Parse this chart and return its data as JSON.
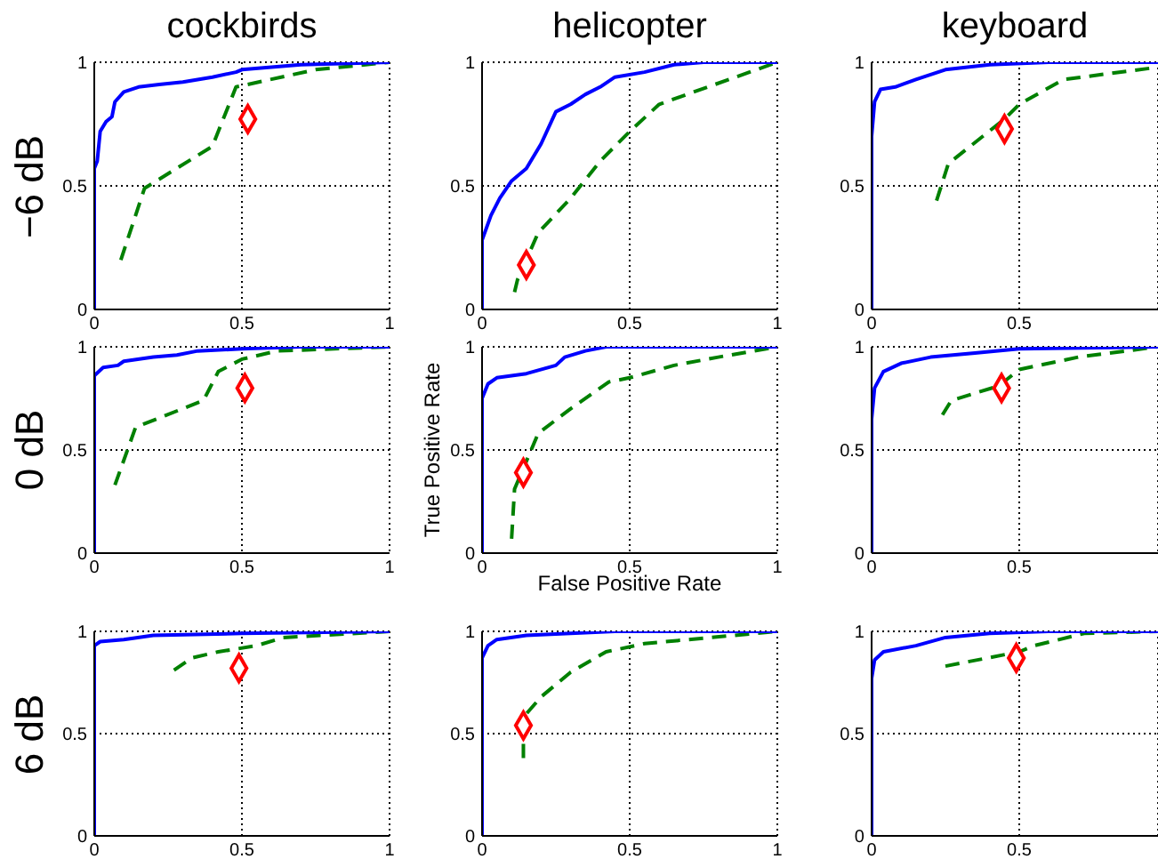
{
  "chart_data": [
    {
      "type": "line",
      "title": "cockbirds",
      "ylabel": "−6 dB",
      "xlim": [
        0,
        1
      ],
      "ylim": [
        0,
        1
      ],
      "xticks": [
        0,
        0.5,
        1
      ],
      "yticks": [
        0,
        0.5,
        1
      ],
      "grid": true,
      "series": [
        {
          "color": "#0000ff",
          "line_style": "solid",
          "x": [
            0,
            0,
            0.01,
            0.02,
            0.04,
            0.06,
            0.07,
            0.1,
            0.15,
            0.22,
            0.3,
            0.4,
            0.48,
            0.5,
            0.7,
            1
          ],
          "values": [
            0,
            0.57,
            0.6,
            0.72,
            0.76,
            0.78,
            0.84,
            0.88,
            0.9,
            0.91,
            0.92,
            0.94,
            0.96,
            0.97,
            0.99,
            1
          ]
        },
        {
          "color": "#008000",
          "line_style": "dashed",
          "x": [
            0.09,
            0.17,
            0.4,
            0.48,
            0.75,
            1
          ],
          "values": [
            0.2,
            0.49,
            0.66,
            0.9,
            0.97,
            1
          ]
        },
        {
          "type": "scatter",
          "color": "#ff0000",
          "marker": "diamond",
          "x": [
            0.52
          ],
          "values": [
            0.77
          ]
        }
      ]
    },
    {
      "type": "line",
      "title": "helicopter",
      "xlim": [
        0,
        1
      ],
      "ylim": [
        0,
        1
      ],
      "xticks": [
        0,
        0.5,
        1
      ],
      "yticks": [
        0,
        0.5,
        1
      ],
      "grid": true,
      "series": [
        {
          "color": "#0000ff",
          "line_style": "solid",
          "x": [
            0,
            0,
            0.03,
            0.06,
            0.1,
            0.15,
            0.2,
            0.25,
            0.3,
            0.35,
            0.4,
            0.45,
            0.55,
            0.65,
            0.75,
            1
          ],
          "values": [
            0,
            0.28,
            0.38,
            0.45,
            0.52,
            0.57,
            0.67,
            0.8,
            0.83,
            0.87,
            0.9,
            0.94,
            0.96,
            0.99,
            1,
            1
          ]
        },
        {
          "color": "#008000",
          "line_style": "dashed",
          "x": [
            0.11,
            0.12,
            0.19,
            0.3,
            0.4,
            0.5,
            0.6,
            1
          ],
          "values": [
            0.07,
            0.12,
            0.31,
            0.45,
            0.6,
            0.72,
            0.83,
            1
          ]
        },
        {
          "type": "scatter",
          "color": "#ff0000",
          "marker": "diamond",
          "x": [
            0.15
          ],
          "values": [
            0.18
          ]
        }
      ]
    },
    {
      "type": "line",
      "title": "keyboard",
      "xlim": [
        0,
        0.97
      ],
      "ylim": [
        0,
        1
      ],
      "xticks": [
        0,
        0.5
      ],
      "yticks": [
        0,
        0.5,
        1
      ],
      "grid": true,
      "series": [
        {
          "color": "#0000ff",
          "line_style": "solid",
          "x": [
            0,
            0,
            0.01,
            0.03,
            0.08,
            0.15,
            0.25,
            0.4,
            0.6,
            0.97
          ],
          "values": [
            0,
            0.7,
            0.84,
            0.89,
            0.9,
            0.93,
            0.97,
            0.99,
            1,
            1
          ]
        },
        {
          "color": "#008000",
          "line_style": "dashed",
          "x": [
            0.22,
            0.26,
            0.45,
            0.5,
            0.65,
            0.97
          ],
          "values": [
            0.44,
            0.59,
            0.77,
            0.83,
            0.93,
            0.98
          ]
        },
        {
          "type": "scatter",
          "color": "#ff0000",
          "marker": "diamond",
          "x": [
            0.45
          ],
          "values": [
            0.73
          ]
        }
      ]
    },
    {
      "type": "line",
      "ylabel": "0 dB",
      "xlim": [
        0,
        1
      ],
      "ylim": [
        0,
        1
      ],
      "xticks": [
        0,
        0.5,
        1
      ],
      "yticks": [
        0,
        0.5,
        1
      ],
      "grid": true,
      "series": [
        {
          "color": "#0000ff",
          "line_style": "solid",
          "x": [
            0,
            0,
            0.03,
            0.08,
            0.1,
            0.2,
            0.28,
            0.35,
            0.5,
            0.7,
            1
          ],
          "values": [
            0,
            0.86,
            0.9,
            0.91,
            0.93,
            0.95,
            0.96,
            0.98,
            0.99,
            1,
            1
          ]
        },
        {
          "color": "#008000",
          "line_style": "dashed",
          "x": [
            0.07,
            0.14,
            0.37,
            0.42,
            0.5,
            0.62,
            1
          ],
          "values": [
            0.33,
            0.61,
            0.74,
            0.88,
            0.94,
            0.98,
            1
          ]
        },
        {
          "type": "scatter",
          "color": "#ff0000",
          "marker": "diamond",
          "x": [
            0.51
          ],
          "values": [
            0.8
          ]
        }
      ]
    },
    {
      "type": "line",
      "xlabel": "False Positive Rate",
      "ylabel": "True Positive Rate",
      "xlim": [
        0,
        1
      ],
      "ylim": [
        0,
        1
      ],
      "xticks": [
        0,
        0.5,
        1
      ],
      "yticks": [
        0,
        0.5,
        1
      ],
      "grid": true,
      "series": [
        {
          "color": "#0000ff",
          "line_style": "solid",
          "x": [
            0,
            0,
            0.02,
            0.05,
            0.15,
            0.25,
            0.28,
            0.35,
            0.42,
            1
          ],
          "values": [
            0,
            0.75,
            0.82,
            0.85,
            0.87,
            0.91,
            0.95,
            0.98,
            1,
            1
          ]
        },
        {
          "color": "#008000",
          "line_style": "dashed",
          "x": [
            0.1,
            0.11,
            0.19,
            0.3,
            0.43,
            0.5,
            0.65,
            0.8,
            1
          ],
          "values": [
            0.07,
            0.31,
            0.58,
            0.7,
            0.83,
            0.85,
            0.91,
            0.95,
            1
          ]
        },
        {
          "type": "scatter",
          "color": "#ff0000",
          "marker": "diamond",
          "x": [
            0.14
          ],
          "values": [
            0.39
          ]
        }
      ]
    },
    {
      "type": "line",
      "xlim": [
        0,
        0.97
      ],
      "ylim": [
        0,
        1
      ],
      "xticks": [
        0,
        0.5
      ],
      "yticks": [
        0,
        0.5,
        1
      ],
      "grid": true,
      "series": [
        {
          "color": "#0000ff",
          "line_style": "solid",
          "x": [
            0,
            0,
            0.01,
            0.04,
            0.1,
            0.2,
            0.35,
            0.5,
            0.97
          ],
          "values": [
            0,
            0.65,
            0.8,
            0.88,
            0.92,
            0.95,
            0.97,
            0.99,
            1
          ]
        },
        {
          "color": "#008000",
          "line_style": "dashed",
          "x": [
            0.24,
            0.27,
            0.43,
            0.5,
            0.7,
            0.97
          ],
          "values": [
            0.67,
            0.74,
            0.81,
            0.89,
            0.95,
            1
          ]
        },
        {
          "type": "scatter",
          "color": "#ff0000",
          "marker": "diamond",
          "x": [
            0.44
          ],
          "values": [
            0.8
          ]
        }
      ]
    },
    {
      "type": "line",
      "ylabel": "6 dB",
      "xlim": [
        0,
        1
      ],
      "ylim": [
        0,
        1
      ],
      "xticks": [
        0,
        0.5,
        1
      ],
      "yticks": [
        0,
        0.5,
        1
      ],
      "grid": true,
      "series": [
        {
          "color": "#0000ff",
          "line_style": "solid",
          "x": [
            0,
            0,
            0.02,
            0.1,
            0.2,
            0.5,
            1
          ],
          "values": [
            0,
            0.93,
            0.95,
            0.96,
            0.98,
            0.99,
            1
          ]
        },
        {
          "color": "#008000",
          "line_style": "dashed",
          "x": [
            0.27,
            0.33,
            0.42,
            0.55,
            0.64,
            1
          ],
          "values": [
            0.81,
            0.87,
            0.9,
            0.93,
            0.97,
            1
          ]
        },
        {
          "type": "scatter",
          "color": "#ff0000",
          "marker": "diamond",
          "x": [
            0.49
          ],
          "values": [
            0.82
          ]
        }
      ]
    },
    {
      "type": "line",
      "xlim": [
        0,
        1
      ],
      "ylim": [
        0,
        1
      ],
      "xticks": [
        0,
        0.5,
        1
      ],
      "yticks": [
        0,
        0.5,
        1
      ],
      "grid": true,
      "series": [
        {
          "color": "#0000ff",
          "line_style": "solid",
          "x": [
            0,
            0,
            0.02,
            0.05,
            0.15,
            0.3,
            0.45,
            1
          ],
          "values": [
            0,
            0.87,
            0.93,
            0.96,
            0.98,
            0.99,
            1,
            1
          ]
        },
        {
          "color": "#008000",
          "line_style": "dashed",
          "x": [
            0.14,
            0.14,
            0.2,
            0.3,
            0.42,
            0.55,
            0.7,
            1
          ],
          "values": [
            0.38,
            0.58,
            0.68,
            0.8,
            0.9,
            0.94,
            0.96,
            1
          ]
        },
        {
          "type": "scatter",
          "color": "#ff0000",
          "marker": "diamond",
          "x": [
            0.14
          ],
          "values": [
            0.54
          ]
        }
      ]
    },
    {
      "type": "line",
      "xlim": [
        0,
        0.97
      ],
      "ylim": [
        0,
        1
      ],
      "xticks": [
        0,
        0.5
      ],
      "yticks": [
        0,
        0.5,
        1
      ],
      "grid": true,
      "series": [
        {
          "color": "#0000ff",
          "line_style": "solid",
          "x": [
            0,
            0,
            0.01,
            0.04,
            0.15,
            0.25,
            0.4,
            0.6,
            0.97
          ],
          "values": [
            0,
            0.77,
            0.86,
            0.9,
            0.93,
            0.97,
            0.99,
            1,
            1
          ]
        },
        {
          "color": "#008000",
          "line_style": "dashed",
          "x": [
            0.25,
            0.5,
            0.55,
            0.72,
            0.97
          ],
          "values": [
            0.83,
            0.9,
            0.93,
            0.99,
            1
          ]
        },
        {
          "type": "scatter",
          "color": "#ff0000",
          "marker": "diamond",
          "x": [
            0.49
          ],
          "values": [
            0.87
          ]
        }
      ]
    }
  ]
}
